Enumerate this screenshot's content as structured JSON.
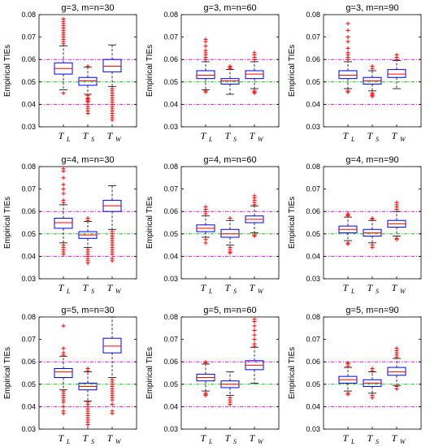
{
  "chart_data": [
    {
      "type": "box",
      "title": "g=3, m=n=30",
      "ylabel": "Empirical TIEs",
      "ylim": [
        0.03,
        0.08
      ],
      "yticks": [
        "0.03",
        "0.04",
        "0.05",
        "0.06",
        "0.07",
        "0.08"
      ],
      "categories": [
        {
          "main": "T",
          "sub": "L"
        },
        {
          "main": "T",
          "sub": "S"
        },
        {
          "main": "T",
          "sub": "W"
        }
      ],
      "reference_lines": [
        0.04,
        0.05,
        0.06
      ],
      "boxes": [
        {
          "lw": 0.0465,
          "q1": 0.0535,
          "med": 0.056,
          "q3": 0.0585,
          "uw": 0.066,
          "outliers": [
            0.045,
            0.067,
            0.068,
            0.069,
            0.07,
            0.071,
            0.072,
            0.073,
            0.074,
            0.075,
            0.076,
            0.077,
            0.078
          ]
        },
        {
          "lw": 0.0445,
          "q1": 0.0485,
          "med": 0.0505,
          "q3": 0.052,
          "uw": 0.0565,
          "outliers": [
            0.057,
            0.044,
            0.043,
            0.0425,
            0.042,
            0.0415,
            0.041,
            0.04,
            0.039,
            0.038,
            0.037,
            0.036
          ]
        },
        {
          "lw": 0.048,
          "q1": 0.0545,
          "med": 0.057,
          "q3": 0.06,
          "uw": 0.0665,
          "outliers": [
            0.047,
            0.046,
            0.045,
            0.044,
            0.043,
            0.042,
            0.041,
            0.04,
            0.039,
            0.038,
            0.037,
            0.036,
            0.035,
            0.034,
            0.033
          ]
        }
      ]
    },
    {
      "type": "box",
      "title": "g=3, m=n=60",
      "ylabel": "Empirical TIEs",
      "ylim": [
        0.03,
        0.08
      ],
      "yticks": [
        "0.03",
        "0.04",
        "0.05",
        "0.06",
        "0.07",
        "0.08"
      ],
      "categories": [
        {
          "main": "T",
          "sub": "L"
        },
        {
          "main": "T",
          "sub": "S"
        },
        {
          "main": "T",
          "sub": "W"
        }
      ],
      "reference_lines": [
        0.04,
        0.05,
        0.06
      ],
      "boxes": [
        {
          "lw": 0.0465,
          "q1": 0.0515,
          "med": 0.053,
          "q3": 0.055,
          "uw": 0.059,
          "outliers": [
            0.046,
            0.0455,
            0.06,
            0.061,
            0.062,
            0.063,
            0.064,
            0.066,
            0.068,
            0.069
          ]
        },
        {
          "lw": 0.0445,
          "q1": 0.049,
          "med": 0.0505,
          "q3": 0.0515,
          "uw": 0.0555,
          "outliers": [
            0.056,
            0.0565,
            0.057
          ]
        },
        {
          "lw": 0.047,
          "q1": 0.0515,
          "med": 0.0535,
          "q3": 0.055,
          "uw": 0.059,
          "outliers": [
            0.046,
            0.0455,
            0.045,
            0.06,
            0.061,
            0.062,
            0.063
          ]
        }
      ]
    },
    {
      "type": "box",
      "title": "g=3, m=n=90",
      "ylabel": "Empirical TIEs",
      "ylim": [
        0.03,
        0.08
      ],
      "yticks": [
        "0.03",
        "0.04",
        "0.05",
        "0.06",
        "0.07",
        "0.08"
      ],
      "categories": [
        {
          "main": "T",
          "sub": "L"
        },
        {
          "main": "T",
          "sub": "S"
        },
        {
          "main": "T",
          "sub": "W"
        }
      ],
      "reference_lines": [
        0.04,
        0.05,
        0.06
      ],
      "boxes": [
        {
          "lw": 0.047,
          "q1": 0.0515,
          "med": 0.053,
          "q3": 0.055,
          "uw": 0.059,
          "outliers": [
            0.046,
            0.0455,
            0.06,
            0.061,
            0.062,
            0.063,
            0.065,
            0.068,
            0.07,
            0.073,
            0.076
          ]
        },
        {
          "lw": 0.046,
          "q1": 0.049,
          "med": 0.0505,
          "q3": 0.052,
          "uw": 0.055,
          "outliers": [
            0.045,
            0.0445,
            0.044,
            0.0435,
            0.056,
            0.057
          ]
        },
        {
          "lw": 0.047,
          "q1": 0.052,
          "med": 0.0535,
          "q3": 0.0555,
          "uw": 0.0595,
          "outliers": [
            0.06,
            0.061,
            0.062
          ]
        }
      ]
    },
    {
      "type": "box",
      "title": "g=4, m=n=30",
      "ylabel": "Empirical TIEs",
      "ylim": [
        0.03,
        0.08
      ],
      "yticks": [
        "0.03",
        "0.04",
        "0.05",
        "0.06",
        "0.07",
        "0.08"
      ],
      "categories": [
        {
          "main": "T",
          "sub": "L"
        },
        {
          "main": "T",
          "sub": "S"
        },
        {
          "main": "T",
          "sub": "W"
        }
      ],
      "reference_lines": [
        0.04,
        0.05,
        0.06
      ],
      "boxes": [
        {
          "lw": 0.046,
          "q1": 0.0525,
          "med": 0.055,
          "q3": 0.057,
          "uw": 0.063,
          "outliers": [
            0.045,
            0.044,
            0.043,
            0.042,
            0.041,
            0.064,
            0.065,
            0.068,
            0.07,
            0.072,
            0.075,
            0.078,
            0.079
          ]
        },
        {
          "lw": 0.044,
          "q1": 0.048,
          "med": 0.0495,
          "q3": 0.051,
          "uw": 0.0555,
          "outliers": [
            0.056,
            0.057,
            0.043,
            0.042,
            0.041,
            0.04,
            0.039,
            0.038,
            0.037
          ]
        },
        {
          "lw": 0.052,
          "q1": 0.06,
          "med": 0.0625,
          "q3": 0.065,
          "uw": 0.0715,
          "outliers": [
            0.051,
            0.05,
            0.049,
            0.048,
            0.047,
            0.046,
            0.045,
            0.044,
            0.043,
            0.042,
            0.041,
            0.039,
            0.038
          ]
        }
      ]
    },
    {
      "type": "box",
      "title": "g=4, m=n=60",
      "ylabel": "Empirical TIEs",
      "ylim": [
        0.03,
        0.08
      ],
      "yticks": [
        "0.03",
        "0.04",
        "0.05",
        "0.06",
        "0.07",
        "0.08"
      ],
      "categories": [
        {
          "main": "T",
          "sub": "L"
        },
        {
          "main": "T",
          "sub": "S"
        },
        {
          "main": "T",
          "sub": "W"
        }
      ],
      "reference_lines": [
        0.04,
        0.05,
        0.06
      ],
      "boxes": [
        {
          "lw": 0.0485,
          "q1": 0.051,
          "med": 0.0525,
          "q3": 0.054,
          "uw": 0.058,
          "outliers": [
            0.046,
            0.0475,
            0.059,
            0.06,
            0.061,
            0.062
          ]
        },
        {
          "lw": 0.045,
          "q1": 0.0485,
          "med": 0.05,
          "q3": 0.052,
          "uw": 0.056,
          "outliers": [
            0.044,
            0.043,
            0.042,
            0.0415,
            0.057
          ]
        },
        {
          "lw": 0.0505,
          "q1": 0.055,
          "med": 0.0565,
          "q3": 0.058,
          "uw": 0.0625,
          "outliers": [
            0.0495,
            0.049,
            0.063,
            0.064,
            0.065,
            0.066,
            0.067
          ]
        }
      ]
    },
    {
      "type": "box",
      "title": "g=4, m=n=90",
      "ylabel": "Empirical TIEs",
      "ylim": [
        0.03,
        0.08
      ],
      "yticks": [
        "0.03",
        "0.04",
        "0.05",
        "0.06",
        "0.07",
        "0.08"
      ],
      "categories": [
        {
          "main": "T",
          "sub": "L"
        },
        {
          "main": "T",
          "sub": "S"
        },
        {
          "main": "T",
          "sub": "W"
        }
      ],
      "reference_lines": [
        0.04,
        0.05,
        0.06
      ],
      "boxes": [
        {
          "lw": 0.047,
          "q1": 0.0505,
          "med": 0.052,
          "q3": 0.0535,
          "uw": 0.0575,
          "outliers": [
            0.046,
            0.0455,
            0.058,
            0.0585,
            0.059
          ]
        },
        {
          "lw": 0.046,
          "q1": 0.049,
          "med": 0.0505,
          "q3": 0.052,
          "uw": 0.056,
          "outliers": [
            0.045,
            0.044,
            0.0565,
            0.057
          ]
        },
        {
          "lw": 0.049,
          "q1": 0.053,
          "med": 0.0545,
          "q3": 0.056,
          "uw": 0.06,
          "outliers": [
            0.048,
            0.0475,
            0.061,
            0.062,
            0.063,
            0.064
          ]
        }
      ]
    },
    {
      "type": "box",
      "title": "g=5, m=n=30",
      "ylabel": "Empirical TIEs",
      "ylim": [
        0.03,
        0.08
      ],
      "yticks": [
        "0.03",
        "0.04",
        "0.05",
        "0.06",
        "0.07",
        "0.08"
      ],
      "categories": [
        {
          "main": "T",
          "sub": "L"
        },
        {
          "main": "T",
          "sub": "S"
        },
        {
          "main": "T",
          "sub": "W"
        }
      ],
      "reference_lines": [
        0.04,
        0.05,
        0.06
      ],
      "boxes": [
        {
          "lw": 0.0475,
          "q1": 0.053,
          "med": 0.0555,
          "q3": 0.057,
          "uw": 0.0625,
          "outliers": [
            0.047,
            0.046,
            0.045,
            0.044,
            0.043,
            0.042,
            0.04,
            0.038,
            0.037,
            0.063,
            0.064,
            0.066,
            0.076
          ]
        },
        {
          "lw": 0.0425,
          "q1": 0.0475,
          "med": 0.049,
          "q3": 0.0505,
          "uw": 0.0555,
          "outliers": [
            0.056,
            0.057,
            0.042,
            0.041,
            0.04,
            0.039,
            0.038,
            0.037,
            0.036,
            0.035,
            0.034,
            0.033,
            0.032
          ]
        },
        {
          "lw": 0.053,
          "q1": 0.064,
          "med": 0.067,
          "q3": 0.0705,
          "uw": 0.08,
          "outliers": [
            0.052,
            0.051,
            0.05,
            0.049,
            0.048,
            0.047,
            0.046,
            0.045,
            0.044,
            0.043,
            0.041,
            0.038,
            0.037
          ]
        }
      ]
    },
    {
      "type": "box",
      "title": "g=5, m=n=60",
      "ylabel": "Empirical TIEs",
      "ylim": [
        0.03,
        0.08
      ],
      "yticks": [
        "0.03",
        "0.04",
        "0.05",
        "0.06",
        "0.07",
        "0.08"
      ],
      "categories": [
        {
          "main": "T",
          "sub": "L"
        },
        {
          "main": "T",
          "sub": "S"
        },
        {
          "main": "T",
          "sub": "W"
        }
      ],
      "reference_lines": [
        0.04,
        0.05,
        0.06
      ],
      "boxes": [
        {
          "lw": 0.047,
          "q1": 0.0515,
          "med": 0.053,
          "q3": 0.0545,
          "uw": 0.059,
          "outliers": [
            0.046,
            0.0455,
            0.045,
            0.0595,
            0.06
          ]
        },
        {
          "lw": 0.045,
          "q1": 0.0485,
          "med": 0.05,
          "q3": 0.0515,
          "uw": 0.0555,
          "outliers": [
            0.044,
            0.043,
            0.042,
            0.041
          ]
        },
        {
          "lw": 0.0505,
          "q1": 0.0565,
          "med": 0.0585,
          "q3": 0.0605,
          "uw": 0.0665,
          "outliers": [
            0.067,
            0.068,
            0.07,
            0.072,
            0.074,
            0.076,
            0.078,
            0.079
          ]
        }
      ]
    },
    {
      "type": "box",
      "title": "g=5, m=n=90",
      "ylabel": "Empirical TIEs",
      "ylim": [
        0.03,
        0.08
      ],
      "yticks": [
        "0.03",
        "0.04",
        "0.05",
        "0.06",
        "0.07",
        "0.08"
      ],
      "categories": [
        {
          "main": "T",
          "sub": "L"
        },
        {
          "main": "T",
          "sub": "S"
        },
        {
          "main": "T",
          "sub": "W"
        }
      ],
      "reference_lines": [
        0.04,
        0.05,
        0.06
      ],
      "boxes": [
        {
          "lw": 0.047,
          "q1": 0.0505,
          "med": 0.052,
          "q3": 0.0535,
          "uw": 0.0575,
          "outliers": [
            0.046,
            0.0455,
            0.058,
            0.059,
            0.0595
          ]
        },
        {
          "lw": 0.046,
          "q1": 0.049,
          "med": 0.0505,
          "q3": 0.052,
          "uw": 0.0555,
          "outliers": [
            0.045,
            0.044,
            0.056,
            0.057
          ]
        },
        {
          "lw": 0.0495,
          "q1": 0.054,
          "med": 0.0555,
          "q3": 0.0575,
          "uw": 0.0615,
          "outliers": [
            0.049,
            0.048,
            0.062,
            0.063,
            0.064,
            0.065,
            0.066
          ]
        }
      ]
    }
  ],
  "colors": {
    "box": "#0000ff",
    "median": "#ff0000",
    "outlier": "#ff0000",
    "whisker": "#000000",
    "ref_outer": "#ff00ff",
    "ref_center": "#00cc00"
  }
}
